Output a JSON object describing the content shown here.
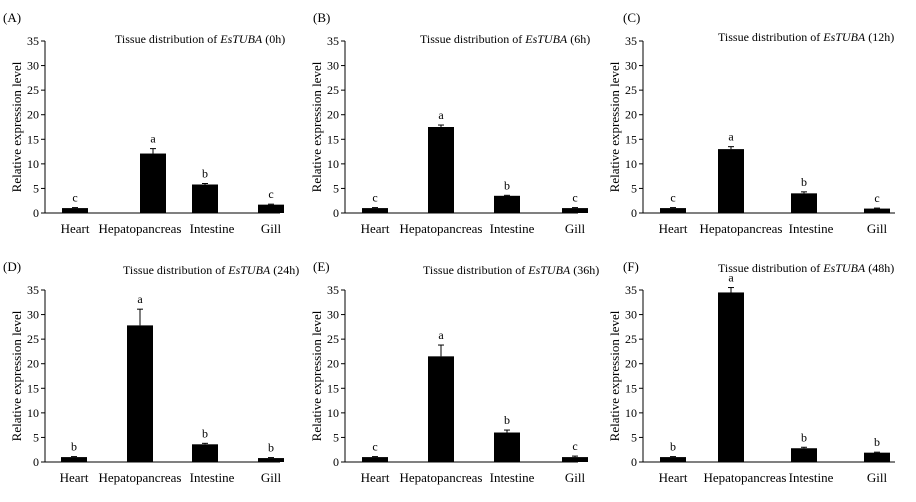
{
  "chart_data": [
    {
      "panel": "(A)",
      "type": "bar",
      "title": "Tissue distribution of ",
      "title_italic": "EsTUBA",
      "title_suffix": " (0h)",
      "ylabel": "Relative expression level",
      "ylim": [
        0,
        35
      ],
      "yticks": [
        "0",
        "5",
        "10",
        "15",
        "20",
        "25",
        "30",
        "35"
      ],
      "categories": [
        "Heart",
        "Hepatopancreas",
        "Intestine",
        "Gill"
      ],
      "values": [
        1.0,
        12.1,
        5.8,
        1.7
      ],
      "errors": [
        0.1,
        1.0,
        0.2,
        0.1
      ],
      "letters": [
        "c",
        "a",
        "b",
        "c"
      ]
    },
    {
      "panel": "(B)",
      "type": "bar",
      "title": "Tissue distribution of ",
      "title_italic": "EsTUBA",
      "title_suffix": " (6h)",
      "ylabel": "Relative expression level",
      "ylim": [
        0,
        35
      ],
      "yticks": [
        "0",
        "5",
        "10",
        "15",
        "20",
        "25",
        "30",
        "35"
      ],
      "categories": [
        "Heart",
        "Hepatopancreas",
        "Intestine",
        "Gill"
      ],
      "values": [
        1.0,
        17.5,
        3.5,
        1.0
      ],
      "errors": [
        0.1,
        0.4,
        0.1,
        0.1
      ],
      "letters": [
        "c",
        "a",
        "b",
        "c"
      ]
    },
    {
      "panel": "(C)",
      "type": "bar",
      "title": "Tissue distribution of ",
      "title_italic": "EsTUBA",
      "title_suffix": " (12h)",
      "ylabel": "Relative expression level",
      "ylim": [
        0,
        35
      ],
      "yticks": [
        "0",
        "5",
        "10",
        "15",
        "20",
        "25",
        "30",
        "35"
      ],
      "categories": [
        "Heart",
        "Hepatopancreas",
        "Intestine",
        "Gill"
      ],
      "values": [
        1.0,
        13.0,
        4.0,
        0.9
      ],
      "errors": [
        0.1,
        0.5,
        0.3,
        0.1
      ],
      "letters": [
        "c",
        "a",
        "b",
        "c"
      ]
    },
    {
      "panel": "(D)",
      "type": "bar",
      "title": "Tissue distribution of ",
      "title_italic": "EsTUBA",
      "title_suffix": " (24h)",
      "ylabel": "Relative expression level",
      "ylim": [
        0,
        35
      ],
      "yticks": [
        "0",
        "5",
        "10",
        "15",
        "20",
        "25",
        "30",
        "35"
      ],
      "categories": [
        "Heart",
        "Hepatopancreas",
        "Intestine",
        "Gill"
      ],
      "values": [
        1.0,
        27.8,
        3.6,
        0.8
      ],
      "errors": [
        0.1,
        3.3,
        0.2,
        0.1
      ],
      "letters": [
        "b",
        "a",
        "b",
        "b"
      ]
    },
    {
      "panel": "(E)",
      "type": "bar",
      "title": "Tissue distribution of ",
      "title_italic": "EsTUBA",
      "title_suffix": " (36h)",
      "ylabel": "Relative expression level",
      "ylim": [
        0,
        35
      ],
      "yticks": [
        "0",
        "5",
        "10",
        "15",
        "20",
        "25",
        "30",
        "35"
      ],
      "categories": [
        "Heart",
        "Hepatopancreas",
        "Intestine",
        "Gill"
      ],
      "values": [
        1.0,
        21.5,
        6.0,
        1.0
      ],
      "errors": [
        0.1,
        2.3,
        0.5,
        0.2
      ],
      "letters": [
        "c",
        "a",
        "b",
        "c"
      ]
    },
    {
      "panel": "(F)",
      "type": "bar",
      "title": "Tissue distribution of ",
      "title_italic": "EsTUBA",
      "title_suffix": " (48h)",
      "ylabel": "Relative expression level",
      "ylim": [
        0,
        35
      ],
      "yticks": [
        "0",
        "5",
        "10",
        "15",
        "20",
        "25",
        "30",
        "35"
      ],
      "categories": [
        "Heart",
        "Hepatopancreas",
        "Intestine",
        "Gill"
      ],
      "values": [
        1.0,
        34.5,
        2.8,
        1.9
      ],
      "errors": [
        0.1,
        1.0,
        0.2,
        0.1
      ],
      "letters": [
        "b",
        "a",
        "b",
        "b"
      ]
    }
  ]
}
